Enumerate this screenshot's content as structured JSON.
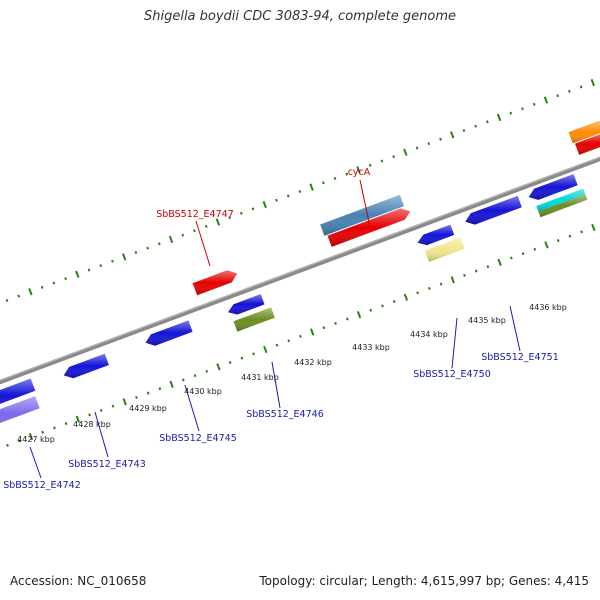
{
  "title": "Shigella boydii CDC 3083-94, complete genome",
  "footer": {
    "accession": "Accession: NC_010658",
    "topology": "Topology: circular; Length: 4,615,997 bp; Genes: 4,415"
  },
  "colors": {
    "tick": "#2e7d1a",
    "backbone": "#8a8a8a",
    "forward_label": "#cc0000",
    "reverse_label": "#1a1aaa",
    "gene_blue": "#1414d6",
    "gene_red": "#e60000",
    "gene_steel": "#4682b4",
    "gene_olive": "#6b8e23",
    "gene_khaki": "#f0e68c",
    "gene_cyan": "#00d8d8",
    "gene_purple": "#7b68ee",
    "gene_orange": "#ff8c00"
  },
  "scale": {
    "unit": "kbp",
    "labels": [
      "4427 kbp",
      "4428 kbp",
      "4429 kbp",
      "4430 kbp",
      "4431 kbp",
      "4432 kbp",
      "4433 kbp",
      "4434 kbp",
      "4435 kbp",
      "4436 kbp"
    ]
  },
  "gene_labels": {
    "forward": [
      "SbBS512_E4747",
      "cycA"
    ],
    "reverse": [
      "SbBS512_E4742",
      "SbBS512_E4743",
      "SbBS512_E4745",
      "SbBS512_E4746",
      "SbBS512_E4750",
      "SbBS512_E4751"
    ]
  }
}
